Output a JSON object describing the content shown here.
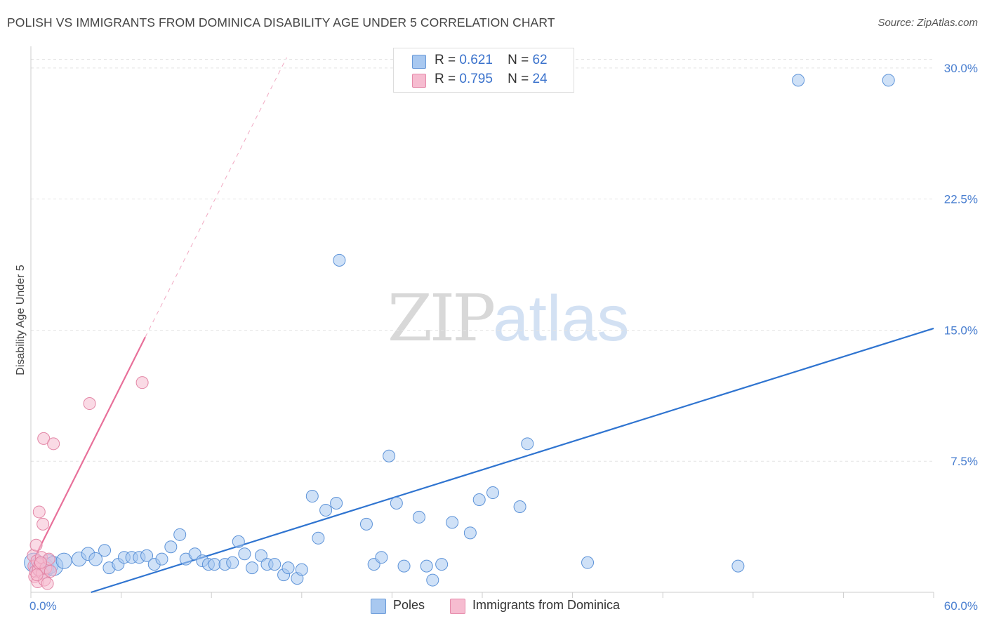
{
  "title": "POLISH VS IMMIGRANTS FROM DOMINICA DISABILITY AGE UNDER 5 CORRELATION CHART",
  "source": "Source: ZipAtlas.com",
  "watermark": {
    "zip": "ZIP",
    "atlas": "atlas"
  },
  "legend": {
    "rows": [
      {
        "r_label": "R =",
        "r_value": "0.621",
        "n_label": "N =",
        "n_value": "62",
        "color": "#a8c8f0"
      },
      {
        "r_label": "R =",
        "r_value": "0.795",
        "n_label": "N =",
        "n_value": "24",
        "color": "#f6bcd0"
      }
    ]
  },
  "bottom_legend": [
    {
      "label": "Poles",
      "color": "#a8c8f0"
    },
    {
      "label": "Immigrants from Dominica",
      "color": "#f6bcd0"
    }
  ],
  "chart_data": {
    "type": "scatter",
    "title": "POLISH VS IMMIGRANTS FROM DOMINICA DISABILITY AGE UNDER 5 CORRELATION CHART",
    "xlabel": "",
    "ylabel": "Disability Age Under 5",
    "xlim": [
      0,
      60
    ],
    "ylim": [
      0,
      31
    ],
    "y_ticks": [
      7.5,
      15,
      22.5,
      30
    ],
    "y_tick_labels": [
      "7.5%",
      "15.0%",
      "22.5%",
      "30.0%"
    ],
    "x_tick_labels": [
      "0.0%",
      "60.0%"
    ],
    "grid": true,
    "series": [
      {
        "name": "Poles",
        "color": "#a8c8f0",
        "stroke": "#5d93d8",
        "trend_color": "#2f74d0",
        "trend": {
          "x0": 4,
          "y0": 0,
          "x1": 60,
          "y1": 15.1
        },
        "points": [
          {
            "x": 0.2,
            "y": 1.7,
            "s": 1.6
          },
          {
            "x": 0.5,
            "y": 1.5,
            "s": 1.4
          },
          {
            "x": 0.8,
            "y": 1.4,
            "s": 1.8
          },
          {
            "x": 1.2,
            "y": 1.6,
            "s": 1.6
          },
          {
            "x": 1.5,
            "y": 1.5,
            "s": 1.6
          },
          {
            "x": 2.2,
            "y": 1.8,
            "s": 1.3
          },
          {
            "x": 3.2,
            "y": 1.9,
            "s": 1.2
          },
          {
            "x": 3.8,
            "y": 2.2,
            "s": 1.1
          },
          {
            "x": 4.3,
            "y": 1.9,
            "s": 1.1
          },
          {
            "x": 4.9,
            "y": 2.4,
            "s": 1.0
          },
          {
            "x": 5.2,
            "y": 1.4,
            "s": 1.0
          },
          {
            "x": 5.8,
            "y": 1.6,
            "s": 1.0
          },
          {
            "x": 6.2,
            "y": 2.0,
            "s": 1.0
          },
          {
            "x": 6.7,
            "y": 2.0,
            "s": 1.0
          },
          {
            "x": 7.2,
            "y": 2.0,
            "s": 1.0
          },
          {
            "x": 7.7,
            "y": 2.1,
            "s": 1.0
          },
          {
            "x": 8.2,
            "y": 1.6,
            "s": 1.0
          },
          {
            "x": 8.7,
            "y": 1.9,
            "s": 1.0
          },
          {
            "x": 9.3,
            "y": 2.6,
            "s": 1.0
          },
          {
            "x": 9.9,
            "y": 3.3,
            "s": 1.0
          },
          {
            "x": 10.3,
            "y": 1.9,
            "s": 1.0
          },
          {
            "x": 10.9,
            "y": 2.2,
            "s": 1.0
          },
          {
            "x": 11.4,
            "y": 1.8,
            "s": 1.0
          },
          {
            "x": 11.8,
            "y": 1.6,
            "s": 1.0
          },
          {
            "x": 12.2,
            "y": 1.6,
            "s": 1.0
          },
          {
            "x": 12.9,
            "y": 1.6,
            "s": 1.0
          },
          {
            "x": 13.4,
            "y": 1.7,
            "s": 1.0
          },
          {
            "x": 13.8,
            "y": 2.9,
            "s": 1.0
          },
          {
            "x": 14.2,
            "y": 2.2,
            "s": 1.0
          },
          {
            "x": 14.7,
            "y": 1.4,
            "s": 1.0
          },
          {
            "x": 15.3,
            "y": 2.1,
            "s": 1.0
          },
          {
            "x": 15.7,
            "y": 1.6,
            "s": 1.0
          },
          {
            "x": 16.2,
            "y": 1.6,
            "s": 1.0
          },
          {
            "x": 16.8,
            "y": 1.0,
            "s": 1.0
          },
          {
            "x": 17.1,
            "y": 1.4,
            "s": 1.0
          },
          {
            "x": 17.7,
            "y": 0.8,
            "s": 1.0
          },
          {
            "x": 18.0,
            "y": 1.3,
            "s": 1.0
          },
          {
            "x": 18.7,
            "y": 5.5,
            "s": 1.0
          },
          {
            "x": 19.1,
            "y": 3.1,
            "s": 1.0
          },
          {
            "x": 19.6,
            "y": 4.7,
            "s": 1.0
          },
          {
            "x": 20.3,
            "y": 5.1,
            "s": 1.0
          },
          {
            "x": 20.5,
            "y": 19.0,
            "s": 1.0
          },
          {
            "x": 22.3,
            "y": 3.9,
            "s": 1.0
          },
          {
            "x": 22.8,
            "y": 1.6,
            "s": 1.0
          },
          {
            "x": 23.3,
            "y": 2.0,
            "s": 1.0
          },
          {
            "x": 23.8,
            "y": 7.8,
            "s": 1.0
          },
          {
            "x": 24.3,
            "y": 5.1,
            "s": 1.0
          },
          {
            "x": 24.8,
            "y": 1.5,
            "s": 1.0
          },
          {
            "x": 25.8,
            "y": 4.3,
            "s": 1.0
          },
          {
            "x": 26.3,
            "y": 1.5,
            "s": 1.0
          },
          {
            "x": 26.7,
            "y": 0.7,
            "s": 1.0
          },
          {
            "x": 27.3,
            "y": 1.6,
            "s": 1.0
          },
          {
            "x": 28.0,
            "y": 4.0,
            "s": 1.0
          },
          {
            "x": 29.2,
            "y": 3.4,
            "s": 1.0
          },
          {
            "x": 29.8,
            "y": 5.3,
            "s": 1.0
          },
          {
            "x": 30.7,
            "y": 5.7,
            "s": 1.0
          },
          {
            "x": 32.5,
            "y": 4.9,
            "s": 1.0
          },
          {
            "x": 33.0,
            "y": 8.5,
            "s": 1.0
          },
          {
            "x": 37.0,
            "y": 1.7,
            "s": 1.0
          },
          {
            "x": 47.0,
            "y": 1.5,
            "s": 1.0
          },
          {
            "x": 51.0,
            "y": 29.3,
            "s": 1.0
          },
          {
            "x": 57.0,
            "y": 29.3,
            "s": 1.0
          }
        ]
      },
      {
        "name": "Immigrants from Dominica",
        "color": "#f6bcd0",
        "stroke": "#e386a6",
        "trend_color": "#e8709a",
        "trend": {
          "x0": 0.2,
          "y0": 1.9,
          "x1": 7.6,
          "y1": 14.6
        },
        "trend_extension": {
          "x0": 7.6,
          "y0": 14.6,
          "x1": 17.0,
          "y1": 30.6
        },
        "points": [
          {
            "x": 0.15,
            "y": 2.1,
            "s": 1.0
          },
          {
            "x": 0.2,
            "y": 1.5,
            "s": 1.0
          },
          {
            "x": 0.25,
            "y": 0.9,
            "s": 1.0
          },
          {
            "x": 0.3,
            "y": 1.2,
            "s": 1.0
          },
          {
            "x": 0.35,
            "y": 2.7,
            "s": 1.0
          },
          {
            "x": 0.4,
            "y": 1.8,
            "s": 1.0
          },
          {
            "x": 0.45,
            "y": 0.6,
            "s": 1.0
          },
          {
            "x": 0.5,
            "y": 1.3,
            "s": 1.0
          },
          {
            "x": 0.55,
            "y": 4.6,
            "s": 1.0
          },
          {
            "x": 0.6,
            "y": 1.6,
            "s": 1.0
          },
          {
            "x": 0.7,
            "y": 2.0,
            "s": 1.0
          },
          {
            "x": 0.75,
            "y": 1.1,
            "s": 1.0
          },
          {
            "x": 0.8,
            "y": 3.9,
            "s": 1.0
          },
          {
            "x": 0.85,
            "y": 8.8,
            "s": 1.0
          },
          {
            "x": 0.9,
            "y": 0.7,
            "s": 1.0
          },
          {
            "x": 1.0,
            "y": 1.4,
            "s": 1.0
          },
          {
            "x": 1.1,
            "y": 0.5,
            "s": 1.0
          },
          {
            "x": 1.2,
            "y": 1.9,
            "s": 1.0
          },
          {
            "x": 1.3,
            "y": 1.2,
            "s": 1.0
          },
          {
            "x": 1.5,
            "y": 8.5,
            "s": 1.0
          },
          {
            "x": 0.4,
            "y": 1.0,
            "s": 1.0
          },
          {
            "x": 0.65,
            "y": 1.7,
            "s": 1.0
          },
          {
            "x": 3.9,
            "y": 10.8,
            "s": 1.0
          },
          {
            "x": 7.4,
            "y": 12.0,
            "s": 1.0
          }
        ]
      }
    ]
  }
}
